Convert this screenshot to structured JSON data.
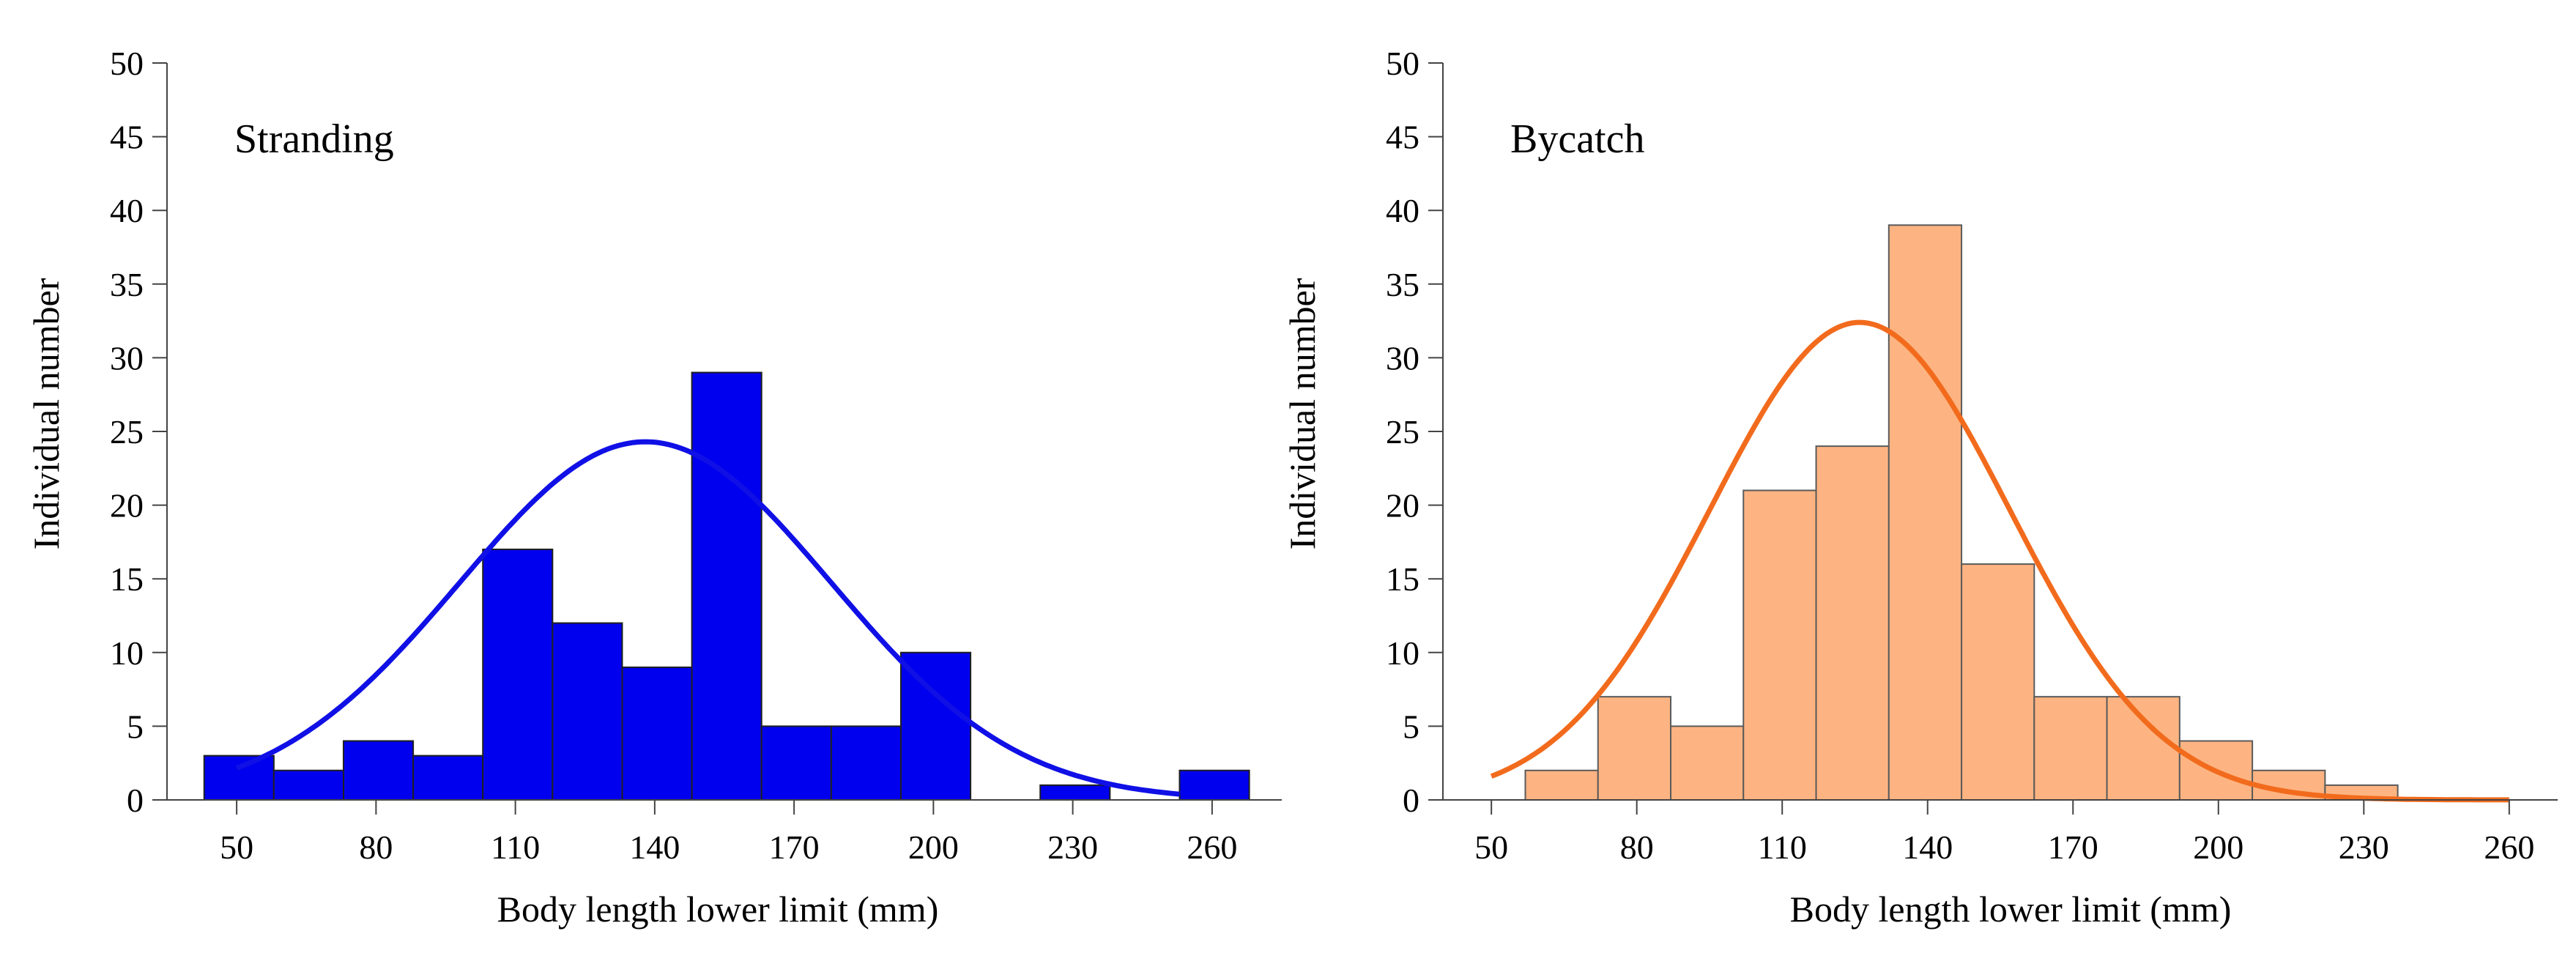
{
  "chart_data": [
    {
      "type": "bar",
      "title": "Stranding",
      "xlabel": "Body length lower limit (mm)",
      "ylabel": "Individual number",
      "xlim": [
        35,
        275
      ],
      "ylim": [
        0,
        50
      ],
      "xticks": [
        50,
        80,
        110,
        140,
        170,
        200,
        230,
        260
      ],
      "yticks": [
        0,
        5,
        10,
        15,
        20,
        25,
        30,
        35,
        40,
        45,
        50
      ],
      "grid": false,
      "bar_color": "#0000ee",
      "bar_edge": "#202020",
      "curve_color": "#1010e6",
      "bins": [
        {
          "start": 43,
          "end": 58,
          "count": 3
        },
        {
          "start": 58,
          "end": 73,
          "count": 2
        },
        {
          "start": 73,
          "end": 88,
          "count": 4
        },
        {
          "start": 88,
          "end": 103,
          "count": 3
        },
        {
          "start": 103,
          "end": 118,
          "count": 17
        },
        {
          "start": 118,
          "end": 133,
          "count": 12
        },
        {
          "start": 133,
          "end": 148,
          "count": 9
        },
        {
          "start": 148,
          "end": 163,
          "count": 29
        },
        {
          "start": 163,
          "end": 178,
          "count": 5
        },
        {
          "start": 178,
          "end": 193,
          "count": 5
        },
        {
          "start": 193,
          "end": 208,
          "count": 10
        },
        {
          "start": 223,
          "end": 238,
          "count": 1
        },
        {
          "start": 253,
          "end": 268,
          "count": 2
        }
      ],
      "normal_curve": {
        "mean": 138,
        "sd": 40,
        "peak": 24.3,
        "x_start": 50,
        "x_end": 253
      }
    },
    {
      "type": "bar",
      "title": "Bycatch",
      "xlabel": "Body length lower limit (mm)",
      "ylabel": "Individual number",
      "xlim": [
        40,
        270
      ],
      "ylim": [
        0,
        50
      ],
      "xticks": [
        50,
        80,
        110,
        140,
        170,
        200,
        230,
        260
      ],
      "yticks": [
        0,
        5,
        10,
        15,
        20,
        25,
        30,
        35,
        40,
        45,
        50
      ],
      "grid": false,
      "bar_color": "#fdb482",
      "bar_edge": "#5a5a5a",
      "curve_color": "#f26b1d",
      "bins": [
        {
          "start": 57,
          "end": 72,
          "count": 2
        },
        {
          "start": 72,
          "end": 87,
          "count": 7
        },
        {
          "start": 87,
          "end": 102,
          "count": 5
        },
        {
          "start": 102,
          "end": 117,
          "count": 21
        },
        {
          "start": 117,
          "end": 132,
          "count": 24
        },
        {
          "start": 132,
          "end": 147,
          "count": 39
        },
        {
          "start": 147,
          "end": 162,
          "count": 16
        },
        {
          "start": 162,
          "end": 177,
          "count": 7
        },
        {
          "start": 177,
          "end": 192,
          "count": 7
        },
        {
          "start": 192,
          "end": 207,
          "count": 4
        },
        {
          "start": 207,
          "end": 222,
          "count": 2
        },
        {
          "start": 222,
          "end": 237,
          "count": 1
        }
      ],
      "normal_curve": {
        "mean": 126,
        "sd": 31,
        "peak": 32.4,
        "x_start": 50,
        "x_end": 260
      }
    }
  ]
}
